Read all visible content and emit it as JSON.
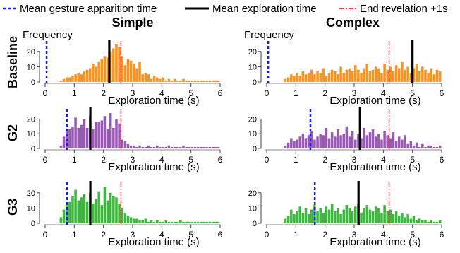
{
  "legend": {
    "items": [
      {
        "label": "Mean gesture apparition time",
        "color": "#1a1aff",
        "style": "dashed"
      },
      {
        "label": "Mean exploration time",
        "color": "#000000",
        "style": "solid"
      },
      {
        "label": "End revelation +1s",
        "color": "#e8222a",
        "style": "dashdot"
      }
    ]
  },
  "column_titles": [
    "Simple",
    "Complex"
  ],
  "row_labels": [
    "Baseline",
    "G2",
    "G3"
  ],
  "colors": {
    "Baseline": "#f7931e",
    "G2": "#9b59b6",
    "G3": "#3cb83c",
    "gesture": "#1a1aff",
    "explore": "#000000",
    "end": "#e8222a"
  },
  "chart_data": [
    {
      "type": "bar",
      "row": "Baseline",
      "column": "Simple",
      "ylabel": "Frequency",
      "xlabel": "Exploration time (s)",
      "xlim": [
        0,
        6
      ],
      "ylim": [
        0,
        25
      ],
      "xticks": [
        0,
        1,
        2,
        3,
        4,
        5,
        6
      ],
      "yticks": [
        0,
        10,
        20
      ],
      "bin_width": 0.1,
      "bin_start": 0.5,
      "values": [
        1,
        2,
        3,
        3,
        4,
        5,
        6,
        5,
        7,
        8,
        9,
        12,
        10,
        13,
        15,
        17,
        16,
        20,
        22,
        25,
        23,
        17,
        11,
        15,
        14,
        12,
        9,
        13,
        5,
        6,
        5,
        2,
        4,
        3,
        2,
        3,
        1,
        2,
        1,
        2,
        1,
        1,
        2,
        1,
        1,
        1,
        1,
        1,
        1,
        1,
        1,
        1,
        1,
        1,
        1
      ],
      "mean_gesture": 0.05,
      "mean_exploration": 2.2,
      "end_revelation": 2.6
    },
    {
      "type": "bar",
      "row": "Baseline",
      "column": "Complex",
      "ylabel": "Frequency",
      "xlabel": "Exploration time (s)",
      "xlim": [
        0,
        6
      ],
      "ylim": [
        0,
        25
      ],
      "xticks": [
        0,
        1,
        2,
        3,
        4,
        5,
        6
      ],
      "yticks": [
        0,
        10,
        20
      ],
      "bin_width": 0.1,
      "bin_start": 0.6,
      "values": [
        2,
        3,
        5,
        4,
        6,
        4,
        7,
        5,
        6,
        8,
        5,
        7,
        6,
        9,
        4,
        6,
        8,
        7,
        5,
        10,
        6,
        8,
        9,
        7,
        11,
        8,
        6,
        9,
        12,
        7,
        8,
        10,
        9,
        6,
        12,
        8,
        10,
        7,
        11,
        9,
        13,
        8,
        10,
        6,
        9,
        12,
        7,
        10,
        8,
        6,
        9,
        5,
        8,
        7
      ],
      "mean_gesture": 0.05,
      "mean_exploration": 5.0,
      "end_revelation": 4.2
    },
    {
      "type": "bar",
      "row": "G2",
      "column": "Simple",
      "xlabel": "Exploration time (s)",
      "xlim": [
        0,
        6
      ],
      "ylim": [
        0,
        25
      ],
      "xticks": [
        0,
        1,
        2,
        3,
        4,
        5,
        6
      ],
      "yticks": [
        0,
        10,
        20
      ],
      "bin_width": 0.1,
      "bin_start": 0.5,
      "values": [
        2,
        8,
        12,
        13,
        15,
        21,
        14,
        16,
        20,
        14,
        22,
        13,
        18,
        18,
        19,
        22,
        13,
        24,
        14,
        20,
        17,
        6,
        5,
        3,
        2,
        2,
        1,
        2,
        1,
        1,
        2,
        1,
        1,
        2,
        1,
        1,
        1,
        2,
        1,
        1,
        1,
        1,
        2,
        1,
        1,
        1,
        1,
        1,
        1,
        1,
        1,
        1,
        1,
        1,
        1
      ],
      "mean_gesture": 0.75,
      "mean_exploration": 1.55,
      "end_revelation": 2.6
    },
    {
      "type": "bar",
      "row": "G2",
      "column": "Complex",
      "xlabel": "Exploration time (s)",
      "xlim": [
        0,
        6
      ],
      "ylim": [
        0,
        25
      ],
      "xticks": [
        0,
        1,
        2,
        3,
        4,
        5,
        6
      ],
      "yticks": [
        0,
        10,
        20
      ],
      "bin_width": 0.1,
      "bin_start": 0.6,
      "values": [
        2,
        4,
        7,
        5,
        6,
        8,
        10,
        7,
        9,
        12,
        6,
        8,
        10,
        9,
        14,
        7,
        11,
        8,
        13,
        9,
        10,
        15,
        8,
        12,
        6,
        10,
        7,
        14,
        9,
        11,
        13,
        8,
        10,
        6,
        12,
        9,
        7,
        11,
        5,
        8,
        6,
        9,
        3,
        5,
        2,
        4,
        1,
        3,
        1,
        2,
        2,
        1,
        1,
        2
      ],
      "mean_gesture": 1.5,
      "mean_exploration": 3.2,
      "end_revelation": 4.2
    },
    {
      "type": "bar",
      "row": "G3",
      "column": "Simple",
      "xlabel": "Exploration time (s)",
      "xlim": [
        0,
        6
      ],
      "ylim": [
        0,
        25
      ],
      "xticks": [
        0,
        1,
        2,
        3,
        4,
        5,
        6
      ],
      "yticks": [
        0,
        10,
        20
      ],
      "bin_width": 0.1,
      "bin_start": 0.5,
      "values": [
        4,
        9,
        12,
        14,
        18,
        22,
        15,
        17,
        19,
        14,
        20,
        13,
        16,
        21,
        12,
        24,
        15,
        20,
        18,
        17,
        13,
        10,
        7,
        5,
        4,
        3,
        3,
        2,
        2,
        3,
        1,
        2,
        1,
        2,
        1,
        1,
        2,
        1,
        1,
        1,
        1,
        2,
        1,
        1,
        1,
        1,
        1,
        1,
        1,
        1,
        1,
        1,
        1,
        1,
        1
      ],
      "mean_gesture": 0.75,
      "mean_exploration": 1.55,
      "end_revelation": 2.6
    },
    {
      "type": "bar",
      "row": "G3",
      "column": "Complex",
      "xlabel": "Exploration time (s)",
      "xlim": [
        0,
        6
      ],
      "ylim": [
        0,
        25
      ],
      "xticks": [
        0,
        1,
        2,
        3,
        4,
        5,
        6
      ],
      "yticks": [
        0,
        10,
        20
      ],
      "bin_width": 0.1,
      "bin_start": 0.6,
      "values": [
        3,
        5,
        9,
        6,
        8,
        11,
        7,
        10,
        6,
        9,
        12,
        8,
        10,
        7,
        11,
        9,
        13,
        8,
        10,
        6,
        9,
        12,
        10,
        8,
        11,
        13,
        7,
        10,
        12,
        9,
        8,
        11,
        10,
        7,
        12,
        8,
        9,
        6,
        8,
        5,
        7,
        4,
        6,
        3,
        5,
        2,
        3,
        2,
        2,
        1,
        2,
        1,
        1,
        2
      ],
      "mean_gesture": 1.65,
      "mean_exploration": 3.15,
      "end_revelation": 4.2
    }
  ]
}
